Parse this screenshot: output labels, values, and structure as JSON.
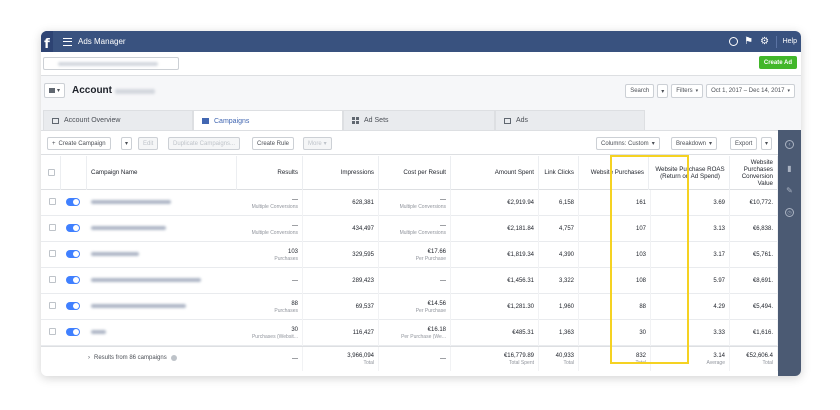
{
  "topbar": {
    "app_title": "Ads Manager",
    "help_label": "Help"
  },
  "colors": {
    "topbar": "#39527f",
    "create_ad": "#42b72a",
    "accent": "#4267b2",
    "toggle_on": "#4080ff",
    "highlight": "#f5d222"
  },
  "icons": {
    "menu": "hamburger-icon",
    "logo": "facebook-logo",
    "globe": "globe-icon",
    "flag": "flag-icon",
    "settings": "gear-icon"
  },
  "header": {
    "create_ad_label": "Create Ad",
    "account_label": "Account"
  },
  "controls": {
    "search_label": "Search",
    "filters_label": "Filters",
    "date_range": "Oct 1, 2017 – Dec 14, 2017"
  },
  "tabs": [
    {
      "label": "Account Overview"
    },
    {
      "label": "Campaigns"
    },
    {
      "label": "Ad Sets"
    },
    {
      "label": "Ads"
    }
  ],
  "toolbar": {
    "create_campaign": "Create Campaign",
    "edit": "Edit",
    "duplicate": "Duplicate Campaigns...",
    "create_rule": "Create Rule",
    "more": "More",
    "columns": "Columns: Custom",
    "breakdown": "Breakdown",
    "export": "Export"
  },
  "table": {
    "columns": {
      "name": "Campaign Name",
      "results": "Results",
      "impressions": "Impressions",
      "cost_per_result": "Cost per Result",
      "amount_spent": "Amount Spent",
      "link_clicks": "Link Clicks",
      "website_purchases": "Website Purchases",
      "roas": "Website Purchase ROAS (Return on Ad Spend)",
      "conversion_value": "Website Purchases Conversion Value"
    },
    "rows": [
      {
        "results": "—",
        "results_sub": "Multiple Conversions",
        "impressions": "628,381",
        "cpr": "—",
        "cpr_sub": "Multiple Conversions",
        "spent": "€2,919.94",
        "clicks": "6,158",
        "purchases": "161",
        "roas": "3.69",
        "value": "€10,772."
      },
      {
        "results": "—",
        "results_sub": "Multiple Conversions",
        "impressions": "434,497",
        "cpr": "—",
        "cpr_sub": "Multiple Conversions",
        "spent": "€2,181.84",
        "clicks": "4,757",
        "purchases": "107",
        "roas": "3.13",
        "value": "€6,838."
      },
      {
        "results": "103",
        "results_sub": "Purchases",
        "impressions": "329,595",
        "cpr": "€17.66",
        "cpr_sub": "Per Purchase",
        "spent": "€1,819.34",
        "clicks": "4,390",
        "purchases": "103",
        "roas": "3.17",
        "value": "€5,761."
      },
      {
        "results": "—",
        "results_sub": "",
        "impressions": "289,423",
        "cpr": "—",
        "cpr_sub": "",
        "spent": "€1,456.31",
        "clicks": "3,322",
        "purchases": "108",
        "roas": "5.97",
        "value": "€8,691."
      },
      {
        "results": "88",
        "results_sub": "Purchases",
        "impressions": "69,537",
        "cpr": "€14.56",
        "cpr_sub": "Per Purchase",
        "spent": "€1,281.30",
        "clicks": "1,960",
        "purchases": "88",
        "roas": "4.29",
        "value": "€5,494."
      },
      {
        "results": "30",
        "results_sub": "Purchases (Websit...",
        "impressions": "116,427",
        "cpr": "€16.18",
        "cpr_sub": "Per Purchase (We...",
        "spent": "€485.31",
        "clicks": "1,363",
        "purchases": "30",
        "roas": "3.33",
        "value": "€1,616."
      }
    ],
    "summary": {
      "label": "Results from 86 campaigns",
      "results": "—",
      "impressions": "3,966,094",
      "impressions_sub": "Total",
      "cpr": "—",
      "spent": "€16,779.89",
      "spent_sub": "Total Spent",
      "clicks": "40,933",
      "clicks_sub": "Total",
      "purchases": "832",
      "purchases_sub": "Total",
      "roas": "3.14",
      "roas_sub": "Average",
      "value": "€52,606.4",
      "value_sub": "Total"
    }
  }
}
